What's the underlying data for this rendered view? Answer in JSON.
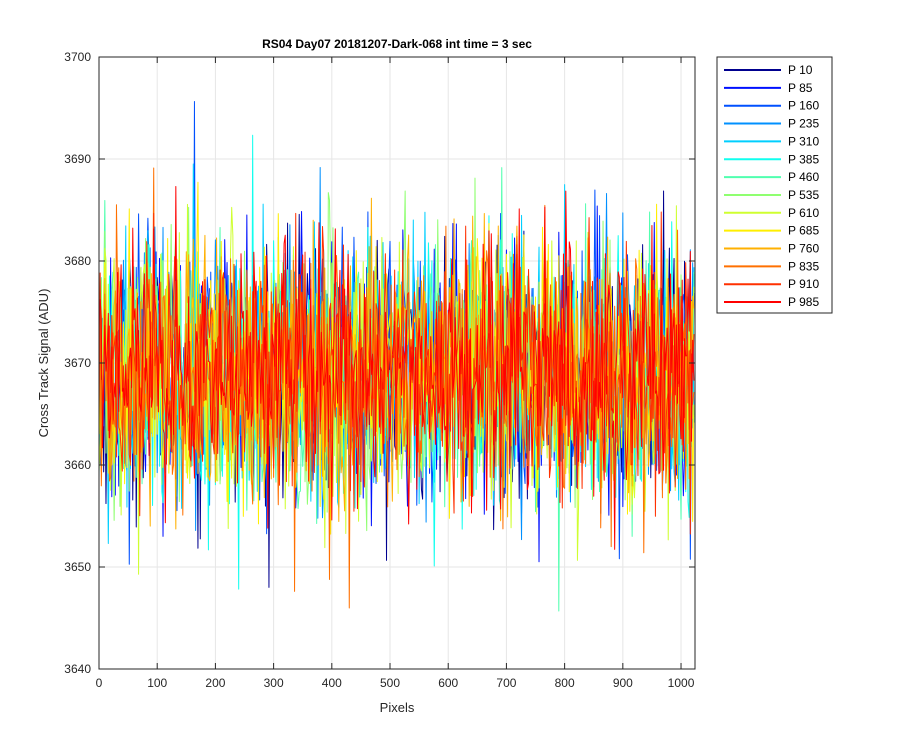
{
  "chart_data": {
    "type": "line",
    "title": "RS04 Day07 20181207-Dark-068 int time = 3 sec",
    "xlabel": "Pixels",
    "ylabel": "Cross Track Signal (ADU)",
    "xlim": [
      0,
      1024
    ],
    "ylim": [
      3640,
      3700
    ],
    "xticks": [
      0,
      100,
      200,
      300,
      400,
      500,
      600,
      700,
      800,
      900,
      1000
    ],
    "yticks": [
      3640,
      3650,
      3660,
      3670,
      3680,
      3690,
      3700
    ],
    "grid": true,
    "legend_position": "outside-top-right",
    "noise": {
      "mean": 3669,
      "spread": 6,
      "seed_note": "dense per-pixel noise around ~3669 ADU"
    },
    "series": [
      {
        "name": "P 10",
        "color": "#00008f",
        "mean": 3669
      },
      {
        "name": "P 85",
        "color": "#0010ff",
        "mean": 3669
      },
      {
        "name": "P 160",
        "color": "#0050ff",
        "mean": 3669
      },
      {
        "name": "P 235",
        "color": "#0090ff",
        "mean": 3669
      },
      {
        "name": "P 310",
        "color": "#00cfff",
        "mean": 3669
      },
      {
        "name": "P 385",
        "color": "#10ffef",
        "mean": 3669
      },
      {
        "name": "P 460",
        "color": "#50ffaf",
        "mean": 3669
      },
      {
        "name": "P 535",
        "color": "#8fff70",
        "mean": 3669
      },
      {
        "name": "P 610",
        "color": "#cfff30",
        "mean": 3669
      },
      {
        "name": "P 685",
        "color": "#ffef00",
        "mean": 3669
      },
      {
        "name": "P 760",
        "color": "#ffb000",
        "mean": 3669
      },
      {
        "name": "P 835",
        "color": "#ff7000",
        "mean": 3669
      },
      {
        "name": "P 910",
        "color": "#ff3000",
        "mean": 3669
      },
      {
        "name": "P 985",
        "color": "#ff0000",
        "mean": 3669
      }
    ]
  }
}
